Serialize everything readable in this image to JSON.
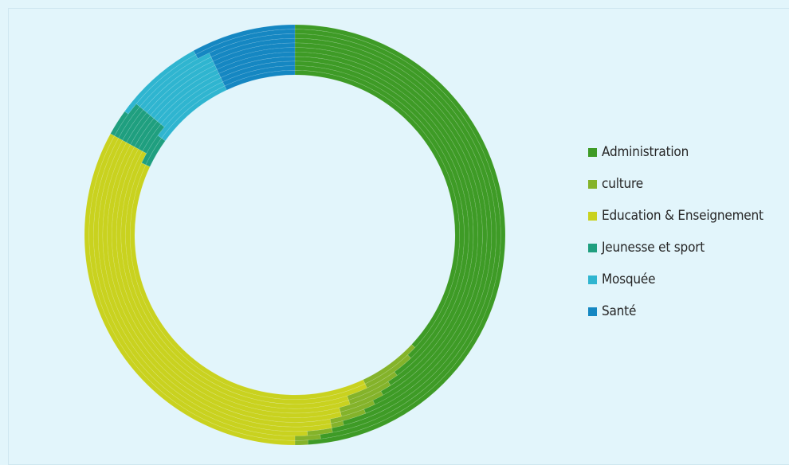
{
  "chart_data": {
    "type": "donut",
    "title": "",
    "legend_position": "right",
    "categories": [
      "Administration",
      "culture",
      "Education & Enseignement",
      "Jeunesse et sport",
      "Mosquée",
      "Santé"
    ],
    "colors": [
      "#3e9b26",
      "#84b32a",
      "#c9d21f",
      "#1f9f7f",
      "#2fb5d0",
      "#1587c2"
    ],
    "series": [
      {
        "values": [
          49,
          1,
          33,
          2,
          7,
          8
        ]
      },
      {
        "values": [
          48,
          2,
          33,
          3,
          6,
          8
        ]
      },
      {
        "values": [
          47,
          2,
          34,
          3,
          7,
          7
        ]
      },
      {
        "values": [
          46,
          1,
          36,
          3,
          7,
          7
        ]
      },
      {
        "values": [
          44,
          3,
          36,
          3,
          7,
          7
        ]
      },
      {
        "values": [
          43,
          3,
          37,
          3,
          7,
          7
        ]
      },
      {
        "values": [
          42,
          4,
          37,
          3,
          7,
          7
        ]
      },
      {
        "values": [
          41,
          4,
          38,
          3,
          7,
          7
        ]
      },
      {
        "values": [
          40,
          5,
          38,
          3,
          7,
          7
        ]
      },
      {
        "values": [
          38,
          5,
          39,
          3,
          8,
          7
        ]
      },
      {
        "values": [
          37,
          6,
          39,
          3,
          8,
          7
        ]
      }
    ]
  }
}
